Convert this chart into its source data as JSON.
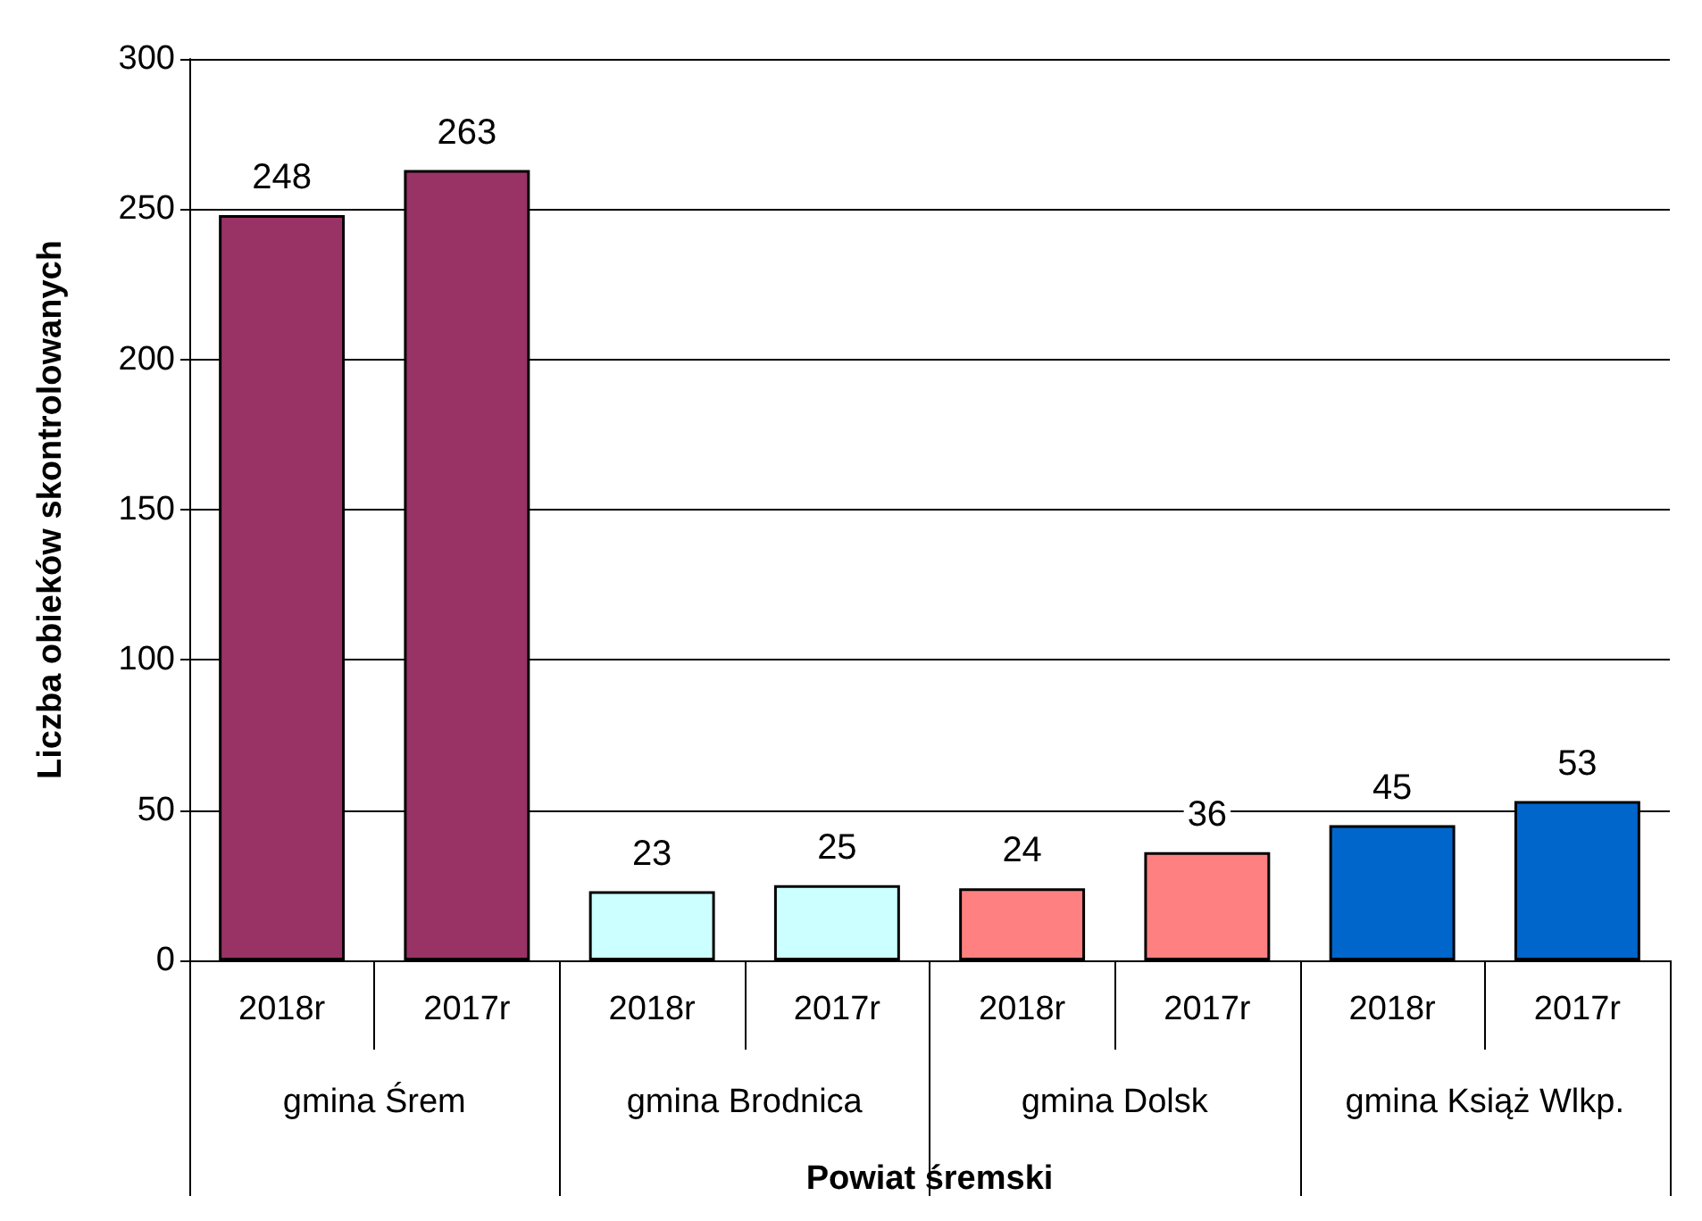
{
  "chart_data": {
    "type": "bar",
    "xlabel": "Powiat śremski",
    "ylabel": "Liczba obieków skontrolowanych",
    "categories": [
      "2018r",
      "2017r",
      "2018r",
      "2017r",
      "2018r",
      "2017r",
      "2018r",
      "2017r"
    ],
    "values": [
      248,
      263,
      23,
      25,
      24,
      36,
      45,
      53
    ],
    "colors": [
      "#993366",
      "#993366",
      "#ccffff",
      "#ccffff",
      "#ff8080",
      "#ff8080",
      "#0066cc",
      "#0066cc"
    ],
    "annotations": [
      "gmina Śrem",
      "gmina Brodnica",
      "gmina Dolsk",
      "gmina Książ Wlkp."
    ],
    "ylim": [
      0,
      300
    ],
    "yticks": [
      0,
      50,
      100,
      150,
      200,
      250,
      300
    ],
    "grid": "y",
    "data_labels": true
  }
}
